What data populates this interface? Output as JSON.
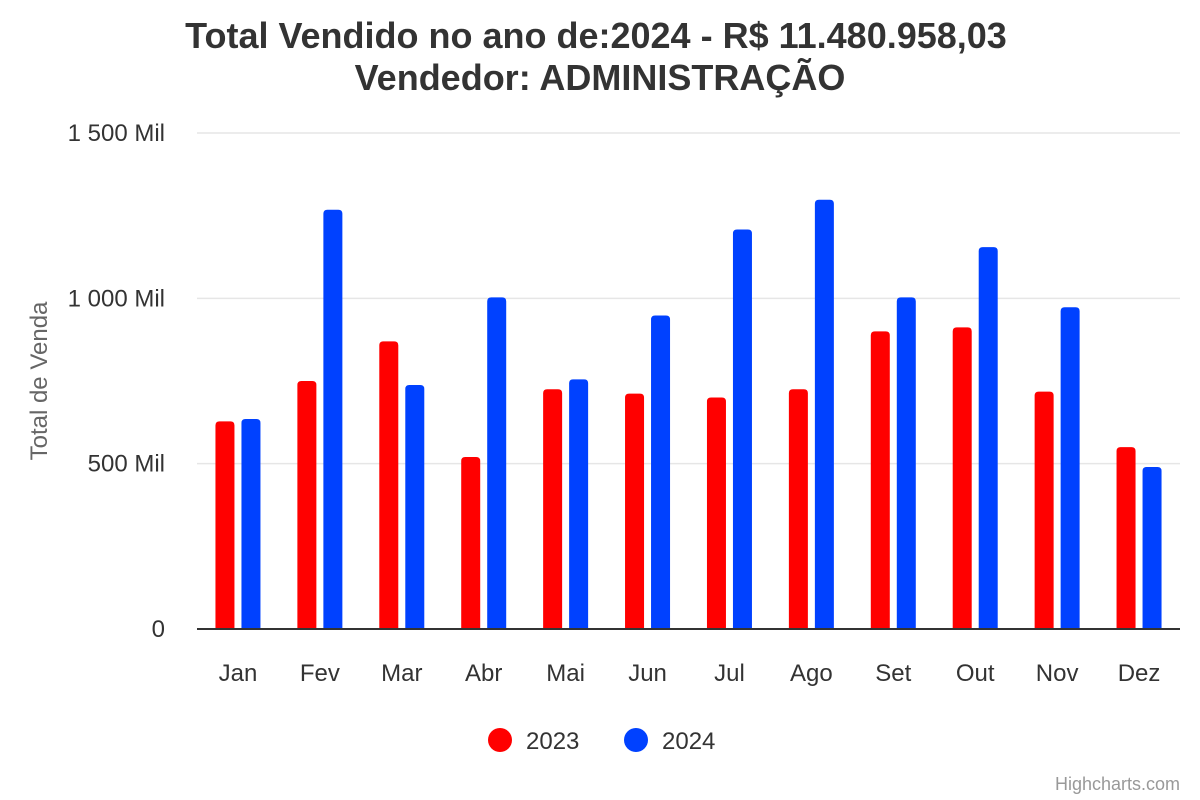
{
  "chart_data": {
    "type": "bar",
    "title": "Total Vendido no ano de:2024 - R$ 11.480.958,03",
    "subtitle": "Vendedor: ADMINISTRAÇÃO",
    "xlabel": "",
    "ylabel": "Total de Venda",
    "categories": [
      "Jan",
      "Fev",
      "Mar",
      "Abr",
      "Mai",
      "Jun",
      "Jul",
      "Ago",
      "Set",
      "Out",
      "Nov",
      "Dez"
    ],
    "series": [
      {
        "name": "2023",
        "color": "#ff0000",
        "values": [
          628000,
          750000,
          870000,
          520000,
          725000,
          712000,
          700000,
          725000,
          900000,
          912000,
          718000,
          550000
        ]
      },
      {
        "name": "2024",
        "color": "#0041ff",
        "values": [
          635000,
          1268000,
          738000,
          1003000,
          755000,
          948000,
          1208000,
          1298000,
          1003000,
          1155000,
          973000,
          490000
        ]
      }
    ],
    "ylim": [
      0,
      1500000
    ],
    "yticks": [
      0,
      500000,
      1000000,
      1500000
    ],
    "ytick_labels": [
      "0",
      "500 Mil",
      "1 000 Mil",
      "1 500 Mil"
    ],
    "grid": true,
    "legend_position": "bottom-center"
  },
  "credits": "Highcharts.com"
}
